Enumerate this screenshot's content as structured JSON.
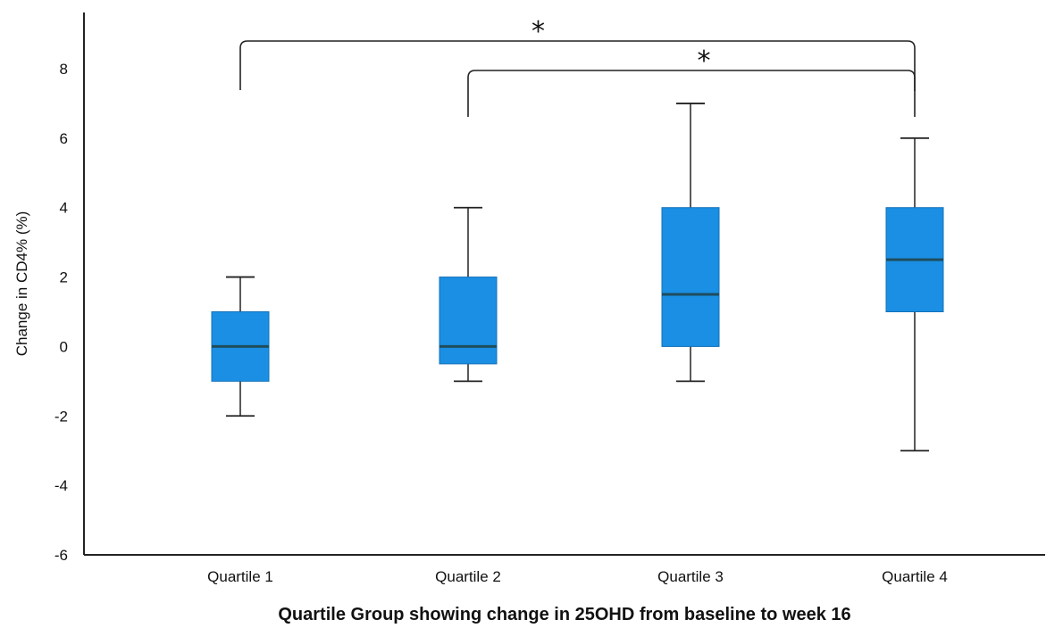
{
  "chart_data": {
    "type": "box",
    "ylabel": "Change in CD4% (%)",
    "xlabel": "Quartile Group showing change in 25OHD from baseline to week 16",
    "ylim": [
      -6,
      8
    ],
    "yticks": [
      "-6",
      "-4",
      "-2",
      "0",
      "2",
      "4",
      "6",
      "8"
    ],
    "categories": [
      "Quartile 1",
      "Quartile 2",
      "Quartile 3",
      "Quartile 4"
    ],
    "box_color": "#1a8fe3",
    "median_color": "#1f4d5c",
    "boxes": [
      {
        "category": "Quartile 1",
        "whisker_low": -2,
        "q1": -1,
        "median": 0,
        "q3": 1,
        "whisker_high": 2
      },
      {
        "category": "Quartile 2",
        "whisker_low": -1,
        "q1": -0.5,
        "median": 0,
        "q3": 2,
        "whisker_high": 4
      },
      {
        "category": "Quartile 3",
        "whisker_low": -1,
        "q1": 0,
        "median": 1.5,
        "q3": 4,
        "whisker_high": 7
      },
      {
        "category": "Quartile 4",
        "whisker_low": -3,
        "q1": 1,
        "median": 2.5,
        "q3": 4,
        "whisker_high": 6
      }
    ],
    "significance": [
      {
        "from": "Quartile 1",
        "to": "Quartile 4",
        "label": "*"
      },
      {
        "from": "Quartile 2",
        "to": "Quartile 4",
        "label": "*"
      }
    ]
  }
}
